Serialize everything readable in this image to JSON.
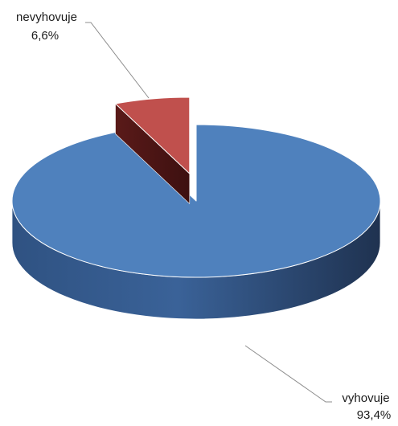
{
  "chart_data": {
    "type": "pie",
    "style": "3d-exploded",
    "title": "",
    "slices": [
      {
        "label": "vyhovuje",
        "value": 93.4,
        "value_label": "93,4%",
        "color": "#4F81BD"
      },
      {
        "label": "nevyhovuje",
        "value": 6.6,
        "value_label": "6,6%",
        "color": "#C0504D"
      }
    ],
    "exploded_slice": "nevyhovuje",
    "legend": "none"
  }
}
